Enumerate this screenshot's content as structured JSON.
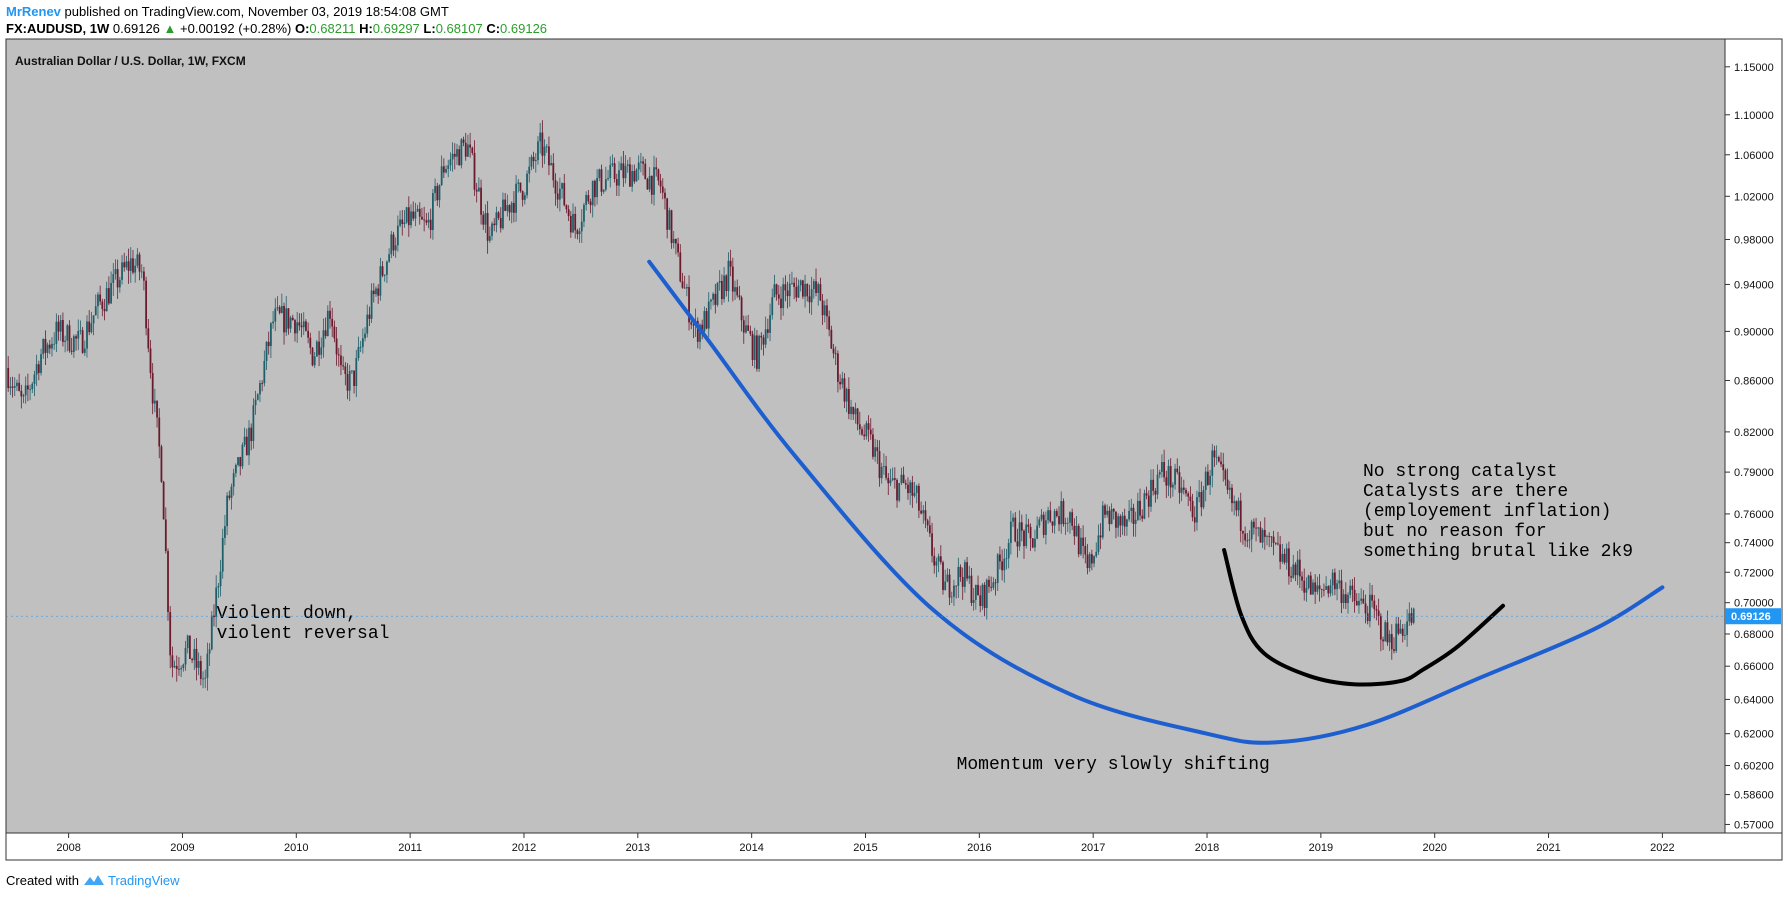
{
  "header": {
    "author": "MrRenev",
    "published_text": "published on TradingView.com, November 03, 2019 18:54:08 GMT",
    "symbol": "FX:AUDUSD, 1W",
    "last_price": "0.69126",
    "change_arrow": "▲",
    "change": "+0.00192 (+0.28%)",
    "open_label": "O:",
    "open": "0.68211",
    "high_label": "H:",
    "high": "0.69297",
    "low_label": "L:",
    "low": "0.68107",
    "close_label": "C:",
    "close": "0.69126"
  },
  "footer": {
    "created_with": "Created with",
    "brand": "TradingView"
  },
  "colors": {
    "plot_bg": "#c0c0c0",
    "candle_up": "#1e5f6a",
    "candle_down": "#6b1a2e",
    "price_tag": "#2196f3",
    "blue_curve": "#1e5fd0",
    "black_curve": "#000000"
  },
  "chart_data": {
    "type": "candlestick",
    "title": "Australian Dollar / U.S. Dollar, 1W, FXCM",
    "timeframe": "1W",
    "x_tick_labels": [
      "2008",
      "2009",
      "2010",
      "2011",
      "2012",
      "2013",
      "2014",
      "2015",
      "2016",
      "2017",
      "2018",
      "2019",
      "2020",
      "2021",
      "2022"
    ],
    "y_tick_labels": [
      "1.15000",
      "1.10000",
      "1.06000",
      "1.02000",
      "0.98000",
      "0.94000",
      "0.90000",
      "0.86000",
      "0.82000",
      "0.79000",
      "0.76000",
      "0.74000",
      "0.72000",
      "0.70000",
      "0.68000",
      "0.66000",
      "0.64000",
      "0.62000",
      "0.60200",
      "0.58600",
      "0.57000"
    ],
    "y_scale": "log",
    "xlim": [
      2007.45,
      2022.55
    ],
    "ylim": [
      0.5655,
      1.18
    ],
    "last_price_label": "0.69126",
    "price_path": [
      [
        2007.45,
        0.87
      ],
      [
        2007.6,
        0.84
      ],
      [
        2007.75,
        0.88
      ],
      [
        2007.9,
        0.9
      ],
      [
        2008.1,
        0.89
      ],
      [
        2008.25,
        0.92
      ],
      [
        2008.4,
        0.94
      ],
      [
        2008.55,
        0.96
      ],
      [
        2008.65,
        0.95
      ],
      [
        2008.75,
        0.84
      ],
      [
        2008.82,
        0.79
      ],
      [
        2008.9,
        0.66
      ],
      [
        2009.05,
        0.67
      ],
      [
        2009.2,
        0.65
      ],
      [
        2009.4,
        0.77
      ],
      [
        2009.6,
        0.82
      ],
      [
        2009.8,
        0.91
      ],
      [
        2010.0,
        0.91
      ],
      [
        2010.15,
        0.88
      ],
      [
        2010.3,
        0.92
      ],
      [
        2010.4,
        0.86
      ],
      [
        2010.5,
        0.86
      ],
      [
        2010.65,
        0.92
      ],
      [
        2010.85,
        0.98
      ],
      [
        2011.0,
        1.0
      ],
      [
        2011.15,
        0.99
      ],
      [
        2011.3,
        1.05
      ],
      [
        2011.5,
        1.07
      ],
      [
        2011.7,
        0.98
      ],
      [
        2011.85,
        1.01
      ],
      [
        2012.0,
        1.03
      ],
      [
        2012.15,
        1.07
      ],
      [
        2012.3,
        1.03
      ],
      [
        2012.45,
        0.99
      ],
      [
        2012.6,
        1.03
      ],
      [
        2012.8,
        1.04
      ],
      [
        2013.0,
        1.045
      ],
      [
        2013.2,
        1.03
      ],
      [
        2013.35,
        0.96
      ],
      [
        2013.5,
        0.9
      ],
      [
        2013.6,
        0.91
      ],
      [
        2013.8,
        0.95
      ],
      [
        2013.95,
        0.9
      ],
      [
        2014.05,
        0.88
      ],
      [
        2014.2,
        0.93
      ],
      [
        2014.45,
        0.94
      ],
      [
        2014.6,
        0.93
      ],
      [
        2014.75,
        0.87
      ],
      [
        2014.9,
        0.83
      ],
      [
        2015.05,
        0.81
      ],
      [
        2015.2,
        0.78
      ],
      [
        2015.35,
        0.78
      ],
      [
        2015.45,
        0.77
      ],
      [
        2015.6,
        0.73
      ],
      [
        2015.7,
        0.71
      ],
      [
        2015.85,
        0.72
      ],
      [
        2016.0,
        0.7
      ],
      [
        2016.15,
        0.72
      ],
      [
        2016.3,
        0.75
      ],
      [
        2016.45,
        0.74
      ],
      [
        2016.6,
        0.76
      ],
      [
        2016.8,
        0.76
      ],
      [
        2016.95,
        0.72
      ],
      [
        2017.1,
        0.76
      ],
      [
        2017.3,
        0.75
      ],
      [
        2017.45,
        0.77
      ],
      [
        2017.6,
        0.79
      ],
      [
        2017.75,
        0.78
      ],
      [
        2017.9,
        0.76
      ],
      [
        2018.05,
        0.8
      ],
      [
        2018.2,
        0.77
      ],
      [
        2018.35,
        0.75
      ],
      [
        2018.5,
        0.74
      ],
      [
        2018.65,
        0.73
      ],
      [
        2018.8,
        0.72
      ],
      [
        2018.95,
        0.705
      ],
      [
        2019.1,
        0.715
      ],
      [
        2019.3,
        0.7
      ],
      [
        2019.45,
        0.695
      ],
      [
        2019.6,
        0.675
      ],
      [
        2019.72,
        0.685
      ],
      [
        2019.82,
        0.6913
      ]
    ],
    "lines": [
      {
        "name": "blue-curve",
        "color": "#1e5fd0",
        "points": [
          [
            2013.1,
            0.96
          ],
          [
            2013.6,
            0.895
          ],
          [
            2014.4,
            0.8
          ],
          [
            2015.6,
            0.695
          ],
          [
            2016.8,
            0.643
          ],
          [
            2018.0,
            0.62
          ],
          [
            2018.6,
            0.615
          ],
          [
            2019.4,
            0.625
          ],
          [
            2020.4,
            0.653
          ],
          [
            2021.4,
            0.683
          ],
          [
            2022.0,
            0.71
          ]
        ]
      },
      {
        "name": "black-curve",
        "color": "#000000",
        "points": [
          [
            2018.15,
            0.735
          ],
          [
            2018.3,
            0.692
          ],
          [
            2018.5,
            0.668
          ],
          [
            2018.9,
            0.654
          ],
          [
            2019.3,
            0.649
          ],
          [
            2019.7,
            0.651
          ],
          [
            2019.9,
            0.658
          ],
          [
            2020.2,
            0.672
          ],
          [
            2020.6,
            0.698
          ]
        ]
      }
    ],
    "annotations": [
      {
        "name": "violent",
        "lines": [
          "Violent down,",
          "violent reversal"
        ],
        "x": 2009.3,
        "y": 0.69
      },
      {
        "name": "momentum",
        "lines": [
          "Momentum very slowly shifting"
        ],
        "x": 2015.8,
        "y": 0.6
      },
      {
        "name": "catalyst",
        "lines": [
          "No strong catalyst",
          "Catalysts are there",
          "(employement inflation)",
          "but no reason for",
          "something brutal like 2k9"
        ],
        "x": 2019.37,
        "y": 0.787
      }
    ]
  }
}
